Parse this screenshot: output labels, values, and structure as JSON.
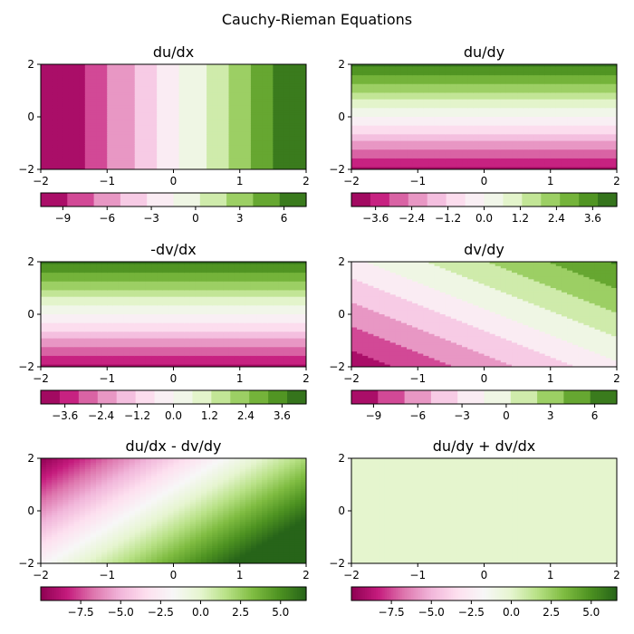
{
  "figure": {
    "title": "Cauchy-Rieman Equations"
  },
  "chart_data": [
    {
      "type": "heatmap",
      "title": "du/dx",
      "field": "dudx",
      "mode": "discrete",
      "xlim": [
        -2,
        2
      ],
      "ylim": [
        -2,
        2
      ],
      "xticks": [
        "−2",
        "−1",
        "0",
        "1",
        "2"
      ],
      "yticks": [
        "2",
        "0",
        "−2"
      ],
      "colorbar": {
        "min": -10.5,
        "max": 7.5,
        "levels": 10,
        "ticks": [
          {
            "v": -9,
            "label": "−9"
          },
          {
            "v": -6,
            "label": "−6"
          },
          {
            "v": -3,
            "label": "−3"
          },
          {
            "v": 0,
            "label": "0"
          },
          {
            "v": 3,
            "label": "3"
          },
          {
            "v": 6,
            "label": "6"
          }
        ]
      }
    },
    {
      "type": "heatmap",
      "title": "du/dy",
      "field": "dudy",
      "mode": "discrete",
      "xlim": [
        -2,
        2
      ],
      "ylim": [
        -2,
        2
      ],
      "xticks": [
        "−2",
        "−1",
        "0",
        "1",
        "2"
      ],
      "yticks": [
        "2",
        "0",
        "−2"
      ],
      "colorbar": {
        "min": -4.4,
        "max": 4.4,
        "levels": 14,
        "ticks": [
          {
            "v": -3.6,
            "label": "−3.6"
          },
          {
            "v": -2.4,
            "label": "−2.4"
          },
          {
            "v": -1.2,
            "label": "−1.2"
          },
          {
            "v": 0,
            "label": "0.0"
          },
          {
            "v": 1.2,
            "label": "1.2"
          },
          {
            "v": 2.4,
            "label": "2.4"
          },
          {
            "v": 3.6,
            "label": "3.6"
          }
        ]
      }
    },
    {
      "type": "heatmap",
      "title": "-dv/dx",
      "field": "dudy",
      "mode": "discrete",
      "xlim": [
        -2,
        2
      ],
      "ylim": [
        -2,
        2
      ],
      "xticks": [
        "−2",
        "−1",
        "0",
        "1",
        "2"
      ],
      "yticks": [
        "2",
        "0",
        "−2"
      ],
      "colorbar": {
        "min": -4.4,
        "max": 4.4,
        "levels": 14,
        "ticks": [
          {
            "v": -3.6,
            "label": "−3.6"
          },
          {
            "v": -2.4,
            "label": "−2.4"
          },
          {
            "v": -1.2,
            "label": "−1.2"
          },
          {
            "v": 0,
            "label": "0.0"
          },
          {
            "v": 1.2,
            "label": "1.2"
          },
          {
            "v": 2.4,
            "label": "2.4"
          },
          {
            "v": 3.6,
            "label": "3.6"
          }
        ]
      }
    },
    {
      "type": "heatmap",
      "title": "dv/dy",
      "field": "dvdy",
      "mode": "discrete",
      "xlim": [
        -2,
        2
      ],
      "ylim": [
        -2,
        2
      ],
      "xticks": [
        "−2",
        "−1",
        "0",
        "1",
        "2"
      ],
      "yticks": [
        "2",
        "0",
        "−2"
      ],
      "colorbar": {
        "min": -10.5,
        "max": 7.5,
        "levels": 10,
        "ticks": [
          {
            "v": -9,
            "label": "−9"
          },
          {
            "v": -6,
            "label": "−6"
          },
          {
            "v": -3,
            "label": "−3"
          },
          {
            "v": 0,
            "label": "0"
          },
          {
            "v": 3,
            "label": "3"
          },
          {
            "v": 6,
            "label": "6"
          }
        ]
      }
    },
    {
      "type": "heatmap",
      "title": "du/dx - dv/dy",
      "field": "diff",
      "mode": "continuous",
      "xlim": [
        -2,
        2
      ],
      "ylim": [
        -2,
        2
      ],
      "xticks": [
        "−2",
        "−1",
        "0",
        "1",
        "2"
      ],
      "yticks": [
        "2",
        "0",
        "−2"
      ],
      "colorbar": {
        "min": -10,
        "max": 6.6,
        "ticks": [
          {
            "v": -7.5,
            "label": "−7.5"
          },
          {
            "v": -5,
            "label": "−5.0"
          },
          {
            "v": -2.5,
            "label": "−2.5"
          },
          {
            "v": 0,
            "label": "0.0"
          },
          {
            "v": 2.5,
            "label": "2.5"
          },
          {
            "v": 5,
            "label": "5.0"
          }
        ]
      }
    },
    {
      "type": "heatmap",
      "title": "du/dy + dv/dx",
      "field": "sum",
      "mode": "continuous",
      "xlim": [
        -2,
        2
      ],
      "ylim": [
        -2,
        2
      ],
      "xticks": [
        "−2",
        "−1",
        "0",
        "1",
        "2"
      ],
      "yticks": [
        "2",
        "0",
        "−2"
      ],
      "colorbar": {
        "min": -10,
        "max": 6.6,
        "ticks": [
          {
            "v": -7.5,
            "label": "−7.5"
          },
          {
            "v": -5,
            "label": "−5.0"
          },
          {
            "v": -2.5,
            "label": "−2.5"
          },
          {
            "v": 0,
            "label": "0.0"
          },
          {
            "v": 2.5,
            "label": "2.5"
          },
          {
            "v": 5,
            "label": "5.0"
          }
        ]
      }
    }
  ],
  "colormap": [
    "#8e0152",
    "#c51b7d",
    "#de77ae",
    "#f1b6da",
    "#fde0ef",
    "#f7f7f7",
    "#e6f5d0",
    "#b8e186",
    "#7fbc41",
    "#4d9221",
    "#276419"
  ]
}
